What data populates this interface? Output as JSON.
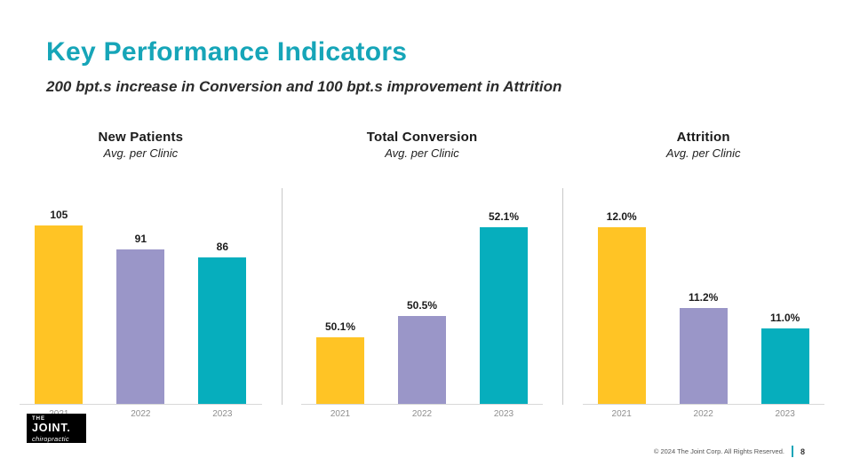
{
  "slide": {
    "title": "Key Performance Indicators",
    "subtitle": "200 bpt.s increase in Conversion and 100 bpt.s improvement in Attrition"
  },
  "footer": {
    "copyright": "© 2024 The Joint Corp. All Rights Reserved.",
    "page_number": "8"
  },
  "logo": {
    "line1": "THE",
    "line2": "JOINT.",
    "line3": "chiropractic"
  },
  "colors": {
    "title_teal": "#16A5B8",
    "bar_yellow": "#FFC425",
    "bar_purple": "#9A96C8",
    "bar_teal": "#06AEBD",
    "divider_gray": "#C8C8C8",
    "axis_gray": "#D8D8D8"
  },
  "chart_data": [
    {
      "type": "bar",
      "title": "New Patients",
      "subtitle": "Avg. per Clinic",
      "categories": [
        "2021",
        "2022",
        "2023"
      ],
      "values": [
        105,
        91,
        86
      ],
      "labels": [
        "105",
        "91",
        "86"
      ],
      "ylim": [
        0,
        107
      ],
      "colors": [
        "#FFC425",
        "#9A96C8",
        "#06AEBD"
      ],
      "legend": "none",
      "grid": false
    },
    {
      "type": "bar",
      "title": "Total Conversion",
      "subtitle": "Avg. per Clinic",
      "categories": [
        "2021",
        "2022",
        "2023"
      ],
      "values": [
        50.1,
        50.5,
        52.1
      ],
      "labels": [
        "50.1%",
        "50.5%",
        "52.1%"
      ],
      "ylim": [
        48.9,
        52.2
      ],
      "colors": [
        "#FFC425",
        "#9A96C8",
        "#06AEBD"
      ],
      "legend": "none",
      "grid": false
    },
    {
      "type": "bar",
      "title": "Attrition",
      "subtitle": "Avg. per Clinic",
      "categories": [
        "2021",
        "2022",
        "2023"
      ],
      "values": [
        12.0,
        11.2,
        11.0
      ],
      "labels": [
        "12.0%",
        "11.2%",
        "11.0%"
      ],
      "ylim": [
        10.25,
        12.05
      ],
      "colors": [
        "#FFC425",
        "#9A96C8",
        "#06AEBD"
      ],
      "legend": "none",
      "grid": false
    }
  ]
}
